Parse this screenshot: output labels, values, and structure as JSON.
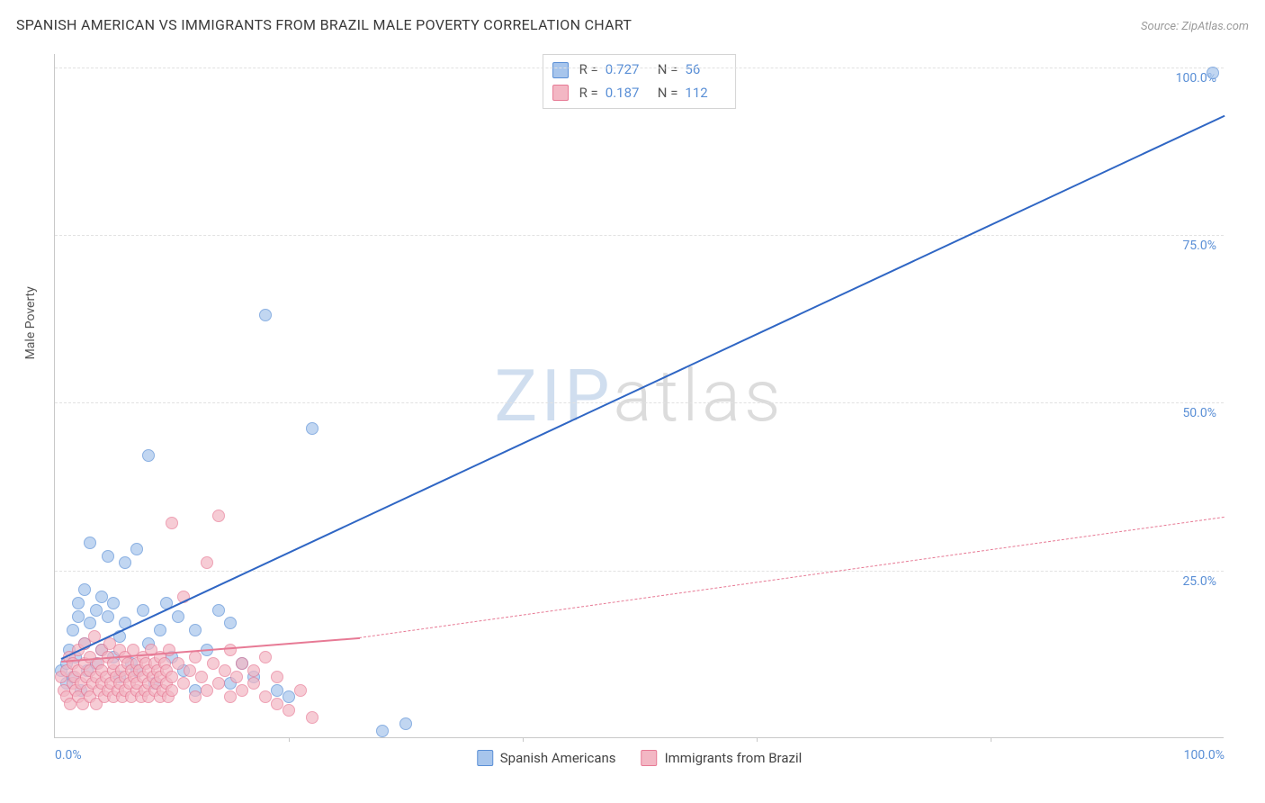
{
  "title": "SPANISH AMERICAN VS IMMIGRANTS FROM BRAZIL MALE POVERTY CORRELATION CHART",
  "source": "Source: ZipAtlas.com",
  "ylabel": "Male Poverty",
  "watermark": {
    "left": "ZIP",
    "right": "atlas"
  },
  "chart": {
    "type": "scatter",
    "xlim": [
      0,
      100
    ],
    "ylim": [
      0,
      102
    ],
    "xtick_labels": [
      "0.0%",
      "100.0%"
    ],
    "ytick_labels": [
      "25.0%",
      "50.0%",
      "75.0%",
      "100.0%"
    ],
    "ytick_values": [
      25,
      50,
      75,
      100
    ],
    "xgrid_values": [
      20,
      40,
      60,
      80
    ],
    "background_color": "#ffffff",
    "grid_color": "#e2e2e2",
    "axis_color": "#c8c8c8",
    "tick_label_color": "#5a8fd6",
    "marker_radius": 7,
    "marker_border_width": 1.2,
    "marker_fill_opacity": 0.35
  },
  "series": [
    {
      "name": "Spanish Americans",
      "color_fill": "#a7c5ec",
      "color_border": "#5a8fd6",
      "trend": {
        "color": "#2f66c4",
        "width": 2.5,
        "solid_from": [
          0.5,
          12
        ],
        "solid_to": [
          100,
          93
        ],
        "dashed_to": null
      },
      "stats": {
        "R": "0.727",
        "N": "56"
      },
      "points": [
        [
          0.5,
          12
        ],
        [
          1,
          10
        ],
        [
          1,
          13
        ],
        [
          1.2,
          15
        ],
        [
          1.5,
          11
        ],
        [
          1.5,
          18
        ],
        [
          1.8,
          14
        ],
        [
          2,
          20
        ],
        [
          2,
          22
        ],
        [
          2.2,
          9
        ],
        [
          2.5,
          16
        ],
        [
          2.5,
          24
        ],
        [
          2.8,
          12
        ],
        [
          3,
          31
        ],
        [
          3,
          19
        ],
        [
          3.5,
          21
        ],
        [
          3.5,
          13
        ],
        [
          4,
          23
        ],
        [
          4,
          15
        ],
        [
          4.5,
          20
        ],
        [
          4.5,
          29
        ],
        [
          5,
          14
        ],
        [
          5,
          22
        ],
        [
          5.5,
          17
        ],
        [
          5.5,
          11
        ],
        [
          6,
          28
        ],
        [
          6,
          19
        ],
        [
          6.5,
          13
        ],
        [
          7,
          30
        ],
        [
          7,
          12
        ],
        [
          7.5,
          21
        ],
        [
          8,
          44
        ],
        [
          8,
          16
        ],
        [
          8.5,
          10
        ],
        [
          9,
          18
        ],
        [
          9.5,
          22
        ],
        [
          10,
          14
        ],
        [
          10.5,
          20
        ],
        [
          11,
          12
        ],
        [
          12,
          18
        ],
        [
          12,
          9
        ],
        [
          13,
          15
        ],
        [
          14,
          21
        ],
        [
          15,
          10
        ],
        [
          15,
          19
        ],
        [
          16,
          13
        ],
        [
          17,
          11
        ],
        [
          18,
          65
        ],
        [
          19,
          9
        ],
        [
          20,
          8
        ],
        [
          22,
          48
        ],
        [
          28,
          3
        ],
        [
          30,
          4
        ],
        [
          99,
          101
        ]
      ]
    },
    {
      "name": "Immigrants from Brazil",
      "color_fill": "#f3b7c4",
      "color_border": "#e77a95",
      "trend": {
        "color": "#e77a95",
        "width": 2,
        "solid_from": [
          0.5,
          11.5
        ],
        "solid_to": [
          26,
          15
        ],
        "dashed_to": [
          100,
          33
        ]
      },
      "stats": {
        "R": "0.187",
        "N": "112"
      },
      "points": [
        [
          0.5,
          11
        ],
        [
          0.8,
          9
        ],
        [
          1,
          12
        ],
        [
          1,
          8
        ],
        [
          1.2,
          14
        ],
        [
          1.3,
          7
        ],
        [
          1.5,
          10
        ],
        [
          1.5,
          13
        ],
        [
          1.7,
          11
        ],
        [
          1.8,
          9
        ],
        [
          2,
          15
        ],
        [
          2,
          12
        ],
        [
          2,
          8
        ],
        [
          2.2,
          10
        ],
        [
          2.4,
          7
        ],
        [
          2.5,
          13
        ],
        [
          2.5,
          16
        ],
        [
          2.7,
          11
        ],
        [
          2.8,
          9
        ],
        [
          3,
          12
        ],
        [
          3,
          14
        ],
        [
          3,
          8
        ],
        [
          3.2,
          10
        ],
        [
          3.4,
          17
        ],
        [
          3.5,
          11
        ],
        [
          3.5,
          7
        ],
        [
          3.7,
          13
        ],
        [
          3.8,
          9
        ],
        [
          4,
          15
        ],
        [
          4,
          10
        ],
        [
          4,
          12
        ],
        [
          4.2,
          8
        ],
        [
          4.4,
          11
        ],
        [
          4.5,
          14
        ],
        [
          4.5,
          9
        ],
        [
          4.7,
          16
        ],
        [
          4.8,
          10
        ],
        [
          5,
          12
        ],
        [
          5,
          8
        ],
        [
          5,
          13
        ],
        [
          5.2,
          11
        ],
        [
          5.4,
          9
        ],
        [
          5.5,
          15
        ],
        [
          5.5,
          10
        ],
        [
          5.7,
          12
        ],
        [
          5.8,
          8
        ],
        [
          6,
          14
        ],
        [
          6,
          11
        ],
        [
          6,
          9
        ],
        [
          6.2,
          13
        ],
        [
          6.4,
          10
        ],
        [
          6.5,
          12
        ],
        [
          6.5,
          8
        ],
        [
          6.7,
          15
        ],
        [
          6.8,
          11
        ],
        [
          7,
          9
        ],
        [
          7,
          13
        ],
        [
          7,
          10
        ],
        [
          7.2,
          12
        ],
        [
          7.4,
          8
        ],
        [
          7.5,
          14
        ],
        [
          7.5,
          11
        ],
        [
          7.7,
          9
        ],
        [
          7.8,
          13
        ],
        [
          8,
          10
        ],
        [
          8,
          12
        ],
        [
          8,
          8
        ],
        [
          8.2,
          15
        ],
        [
          8.4,
          11
        ],
        [
          8.5,
          9
        ],
        [
          8.5,
          13
        ],
        [
          8.7,
          10
        ],
        [
          8.8,
          12
        ],
        [
          9,
          8
        ],
        [
          9,
          14
        ],
        [
          9,
          11
        ],
        [
          9.2,
          9
        ],
        [
          9.4,
          13
        ],
        [
          9.5,
          10
        ],
        [
          9.5,
          12
        ],
        [
          9.7,
          8
        ],
        [
          9.8,
          15
        ],
        [
          10,
          11
        ],
        [
          10,
          9
        ],
        [
          10,
          34
        ],
        [
          10.5,
          13
        ],
        [
          11,
          10
        ],
        [
          11,
          23
        ],
        [
          11.5,
          12
        ],
        [
          12,
          8
        ],
        [
          12,
          14
        ],
        [
          12.5,
          11
        ],
        [
          13,
          9
        ],
        [
          13,
          28
        ],
        [
          13.5,
          13
        ],
        [
          14,
          10
        ],
        [
          14,
          35
        ],
        [
          14.5,
          12
        ],
        [
          15,
          8
        ],
        [
          15,
          15
        ],
        [
          15.5,
          11
        ],
        [
          16,
          9
        ],
        [
          16,
          13
        ],
        [
          17,
          10
        ],
        [
          17,
          12
        ],
        [
          18,
          8
        ],
        [
          18,
          14
        ],
        [
          19,
          11
        ],
        [
          19,
          7
        ],
        [
          20,
          6
        ],
        [
          21,
          9
        ],
        [
          22,
          5
        ]
      ]
    }
  ],
  "legend_top": {
    "rows": [
      {
        "swatch": 0,
        "R": "0.727",
        "N": "56"
      },
      {
        "swatch": 1,
        "R": "0.187",
        "N": "112"
      }
    ]
  },
  "legend_bottom": [
    {
      "swatch": 0,
      "label": "Spanish Americans"
    },
    {
      "swatch": 1,
      "label": "Immigrants from Brazil"
    }
  ]
}
